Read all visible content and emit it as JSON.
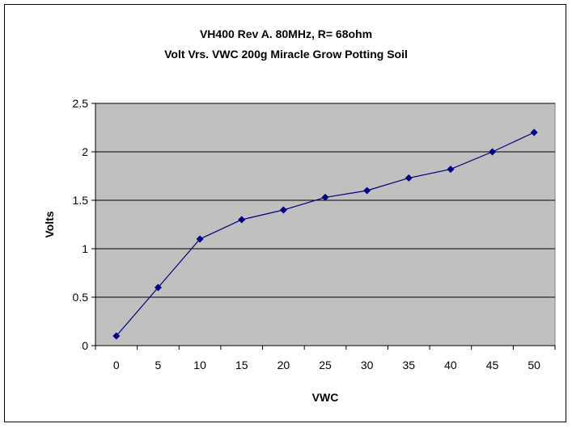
{
  "chart_data": {
    "type": "line",
    "title": "VH400 Rev A. 80MHz, R= 68ohm",
    "subtitle": "Volt Vrs. VWC 200g Miracle Grow Potting Soil",
    "xlabel": "VWC",
    "ylabel": "Volts",
    "x": [
      0,
      5,
      10,
      15,
      20,
      25,
      30,
      35,
      40,
      45,
      50
    ],
    "series": [
      {
        "values": [
          0.1,
          0.6,
          1.1,
          1.3,
          1.4,
          1.53,
          1.6,
          1.73,
          1.82,
          2.0,
          2.2
        ]
      }
    ],
    "x_ticks": [
      "0",
      "5",
      "10",
      "15",
      "20",
      "25",
      "30",
      "35",
      "40",
      "45",
      "50"
    ],
    "y_ticks": [
      "0",
      "0.5",
      "1",
      "1.5",
      "2",
      "2.5"
    ],
    "ylim": [
      0,
      2.5
    ],
    "grid": "horizontal",
    "legend": "none",
    "colors": {
      "plot_bg": "#c0c0c0",
      "series": "#000080",
      "grid": "#000000"
    }
  }
}
